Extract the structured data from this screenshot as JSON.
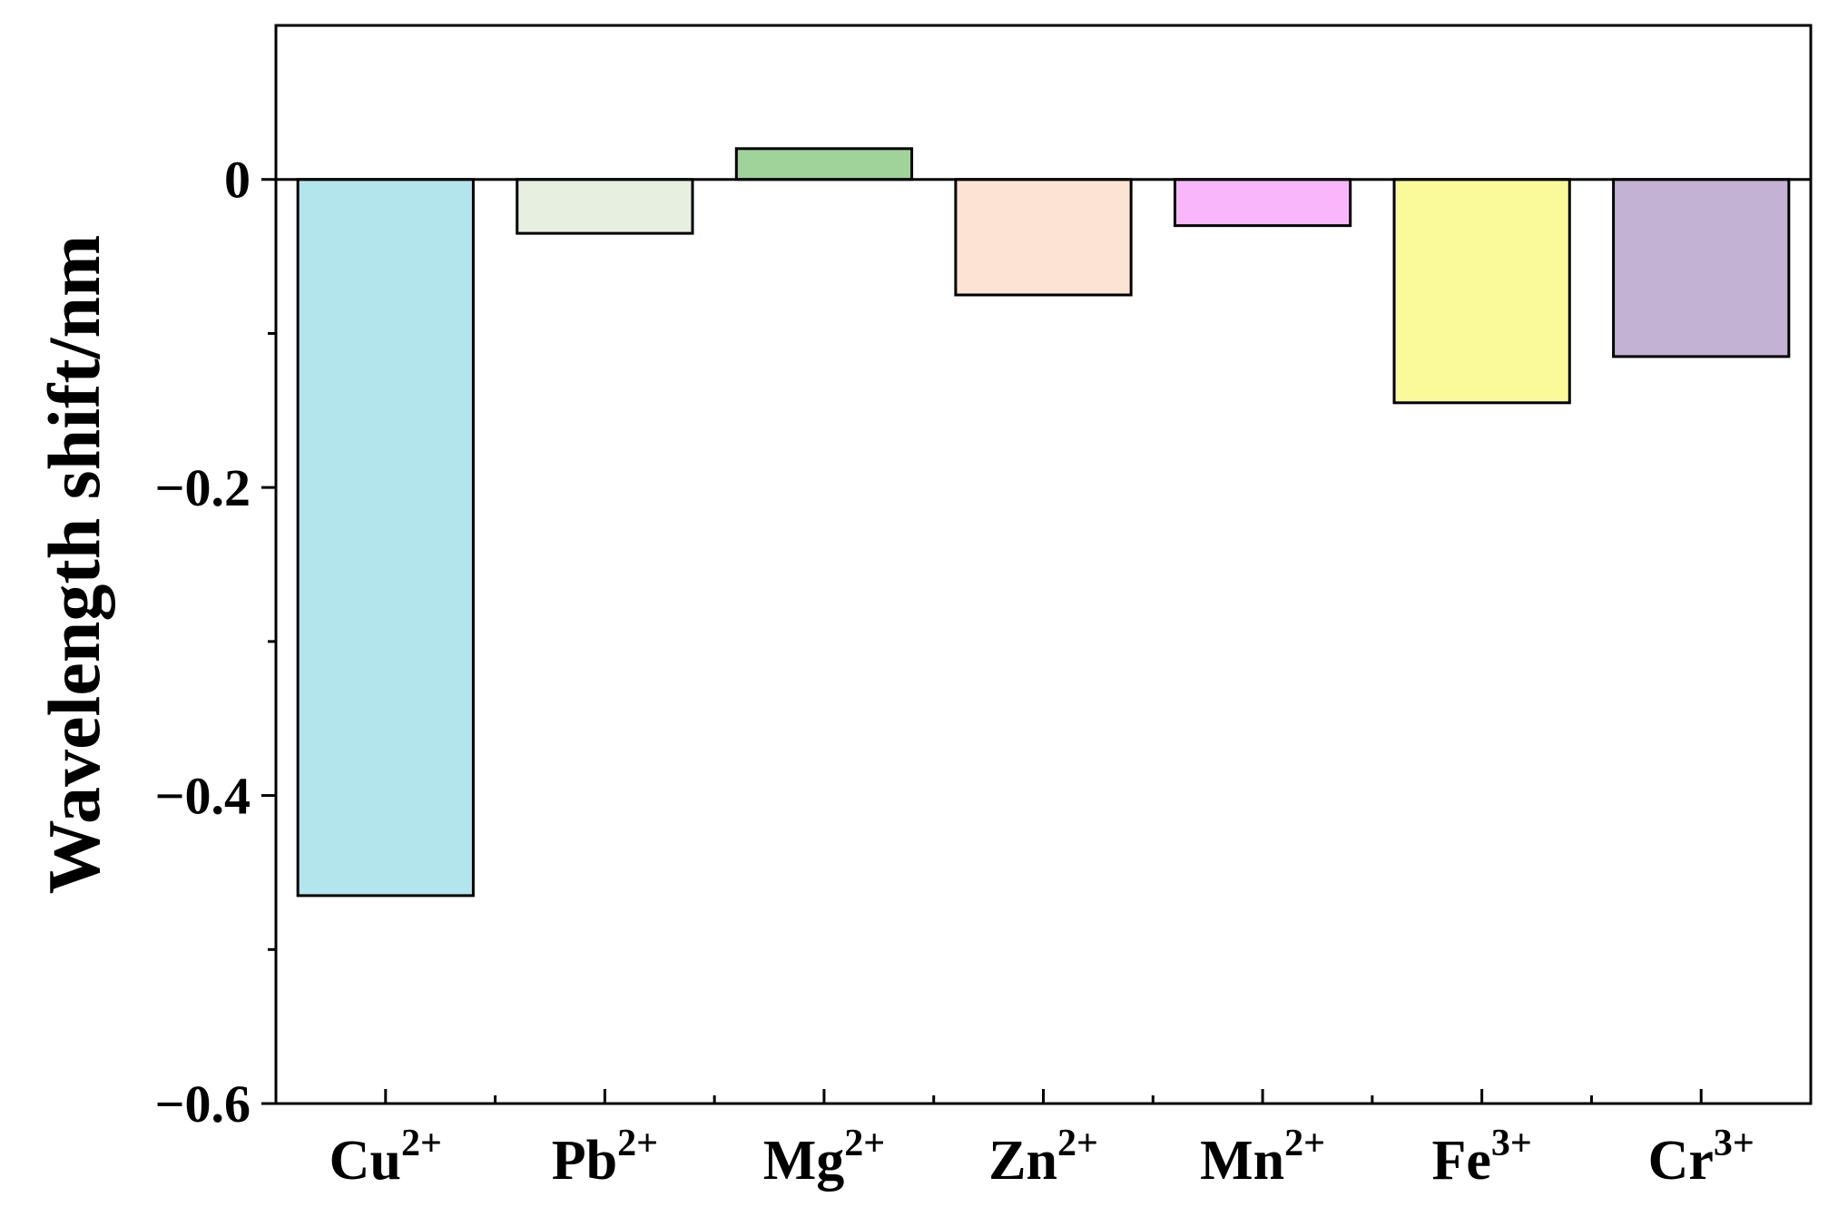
{
  "chart_data": {
    "type": "bar",
    "categories": [
      {
        "base": "Cu",
        "sup": "2+"
      },
      {
        "base": "Pb",
        "sup": "2+"
      },
      {
        "base": "Mg",
        "sup": "2+"
      },
      {
        "base": "Zn",
        "sup": "2+"
      },
      {
        "base": "Mn",
        "sup": "2+"
      },
      {
        "base": "Fe",
        "sup": "3+"
      },
      {
        "base": "Cr",
        "sup": "3+"
      }
    ],
    "values": [
      -0.465,
      -0.035,
      0.02,
      -0.075,
      -0.03,
      -0.145,
      -0.115
    ],
    "colors": [
      "#b3e5ec",
      "#e6efe0",
      "#9fd39a",
      "#fde3d3",
      "#f9b6f9",
      "#fafa9a",
      "#c4b2d4"
    ],
    "title": "",
    "xlabel": "",
    "ylabel": "Wavelength shift/nm",
    "ylim": [
      -0.6,
      0.1
    ],
    "yticks": [
      0,
      -0.2,
      -0.4,
      -0.6
    ],
    "ytick_labels": [
      "0",
      "−0.2",
      "−0.4",
      "−0.6"
    ],
    "y_minor_ticks": [
      -0.1,
      -0.3,
      -0.5
    ],
    "grid": false,
    "legend": "none"
  }
}
